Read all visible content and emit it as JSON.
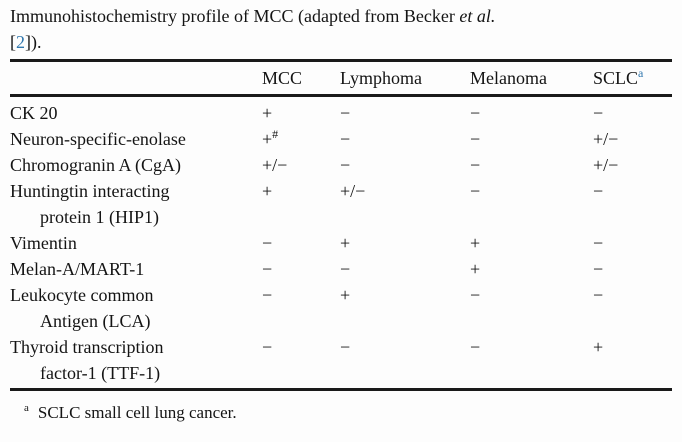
{
  "colors": {
    "link_blue": "#3077ae",
    "text": "#141414"
  },
  "caption": {
    "line1_text": "Immunohistochemistry profile of MCC (adapted from Becker",
    "line1_italic": "et al.",
    "line2_prefix": "[",
    "line2_ref": "2",
    "line2_suffix": "])."
  },
  "table": {
    "columns": [
      {
        "label": "MCC",
        "sup": ""
      },
      {
        "label": "Lymphoma",
        "sup": ""
      },
      {
        "label": "Melanoma",
        "sup": ""
      },
      {
        "label": "SCLC",
        "sup": "a"
      }
    ],
    "rows": [
      {
        "label1": "CK 20",
        "values": [
          "+",
          "−",
          "−",
          "−"
        ]
      },
      {
        "label1": "Neuron-specific-enolase",
        "values": [
          "+",
          "−",
          "−",
          "+/−"
        ],
        "sups": {
          "0": "#"
        }
      },
      {
        "label1": "Chromogranin A (CgA)",
        "values": [
          "+/−",
          "−",
          "−",
          "+/−"
        ]
      },
      {
        "label1": "Huntingtin interacting",
        "label2": "protein 1 (HIP1)",
        "values": [
          "+",
          "+/−",
          "−",
          "−"
        ]
      },
      {
        "label1": "Vimentin",
        "values": [
          "−",
          "+",
          "+",
          "−"
        ]
      },
      {
        "label1": "Melan-A/MART-1",
        "values": [
          "−",
          "−",
          "+",
          "−"
        ]
      },
      {
        "label1": "Leukocyte common",
        "label2": "Antigen (LCA)",
        "values": [
          "−",
          "+",
          "−",
          "−"
        ]
      },
      {
        "label1": "Thyroid transcription",
        "label2": "factor-1 (TTF-1)",
        "values": [
          "−",
          "−",
          "−",
          "+"
        ]
      }
    ]
  },
  "footnote": {
    "marker": "a",
    "text": "SCLC small cell lung cancer."
  }
}
